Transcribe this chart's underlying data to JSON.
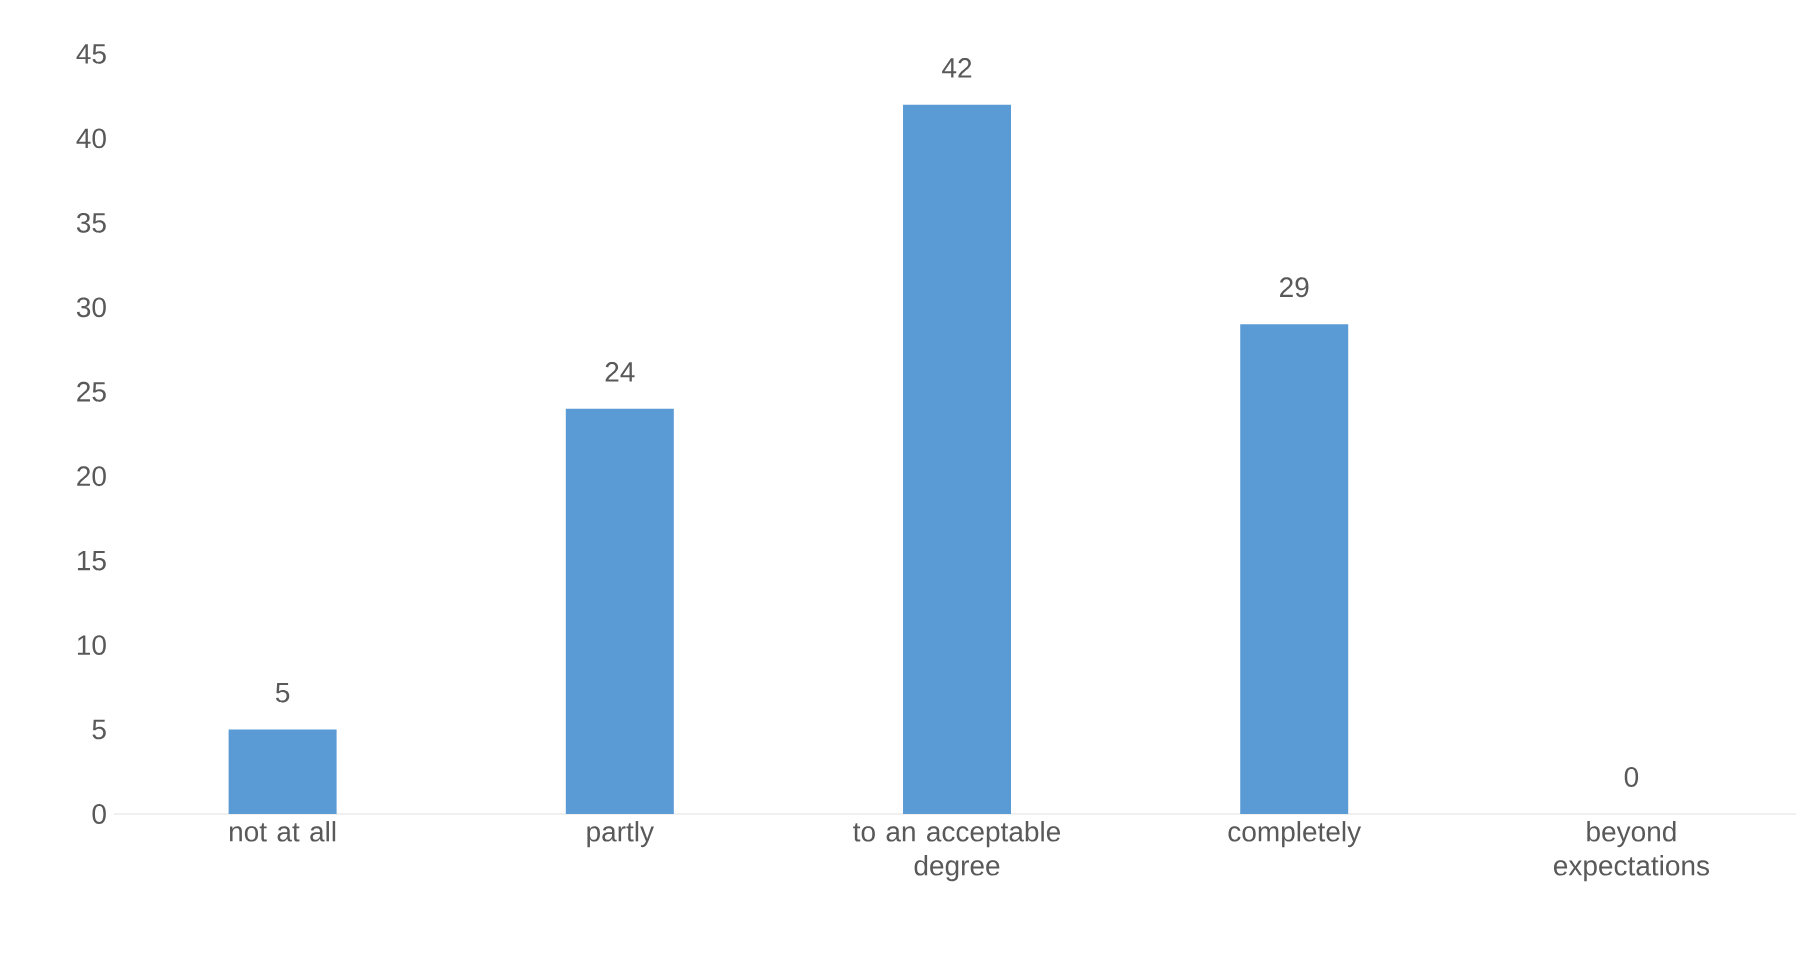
{
  "chart_data": {
    "type": "bar",
    "categories": [
      "not at all",
      "partly",
      "to an acceptable degree",
      "completely",
      "beyond expectations"
    ],
    "values": [
      5,
      24,
      42,
      29,
      0
    ],
    "color": "#5b9bd5",
    "ylim": [
      0,
      45
    ],
    "yticks": [
      0,
      5,
      10,
      15,
      20,
      25,
      30,
      35,
      40,
      45
    ],
    "data_labels": true
  }
}
